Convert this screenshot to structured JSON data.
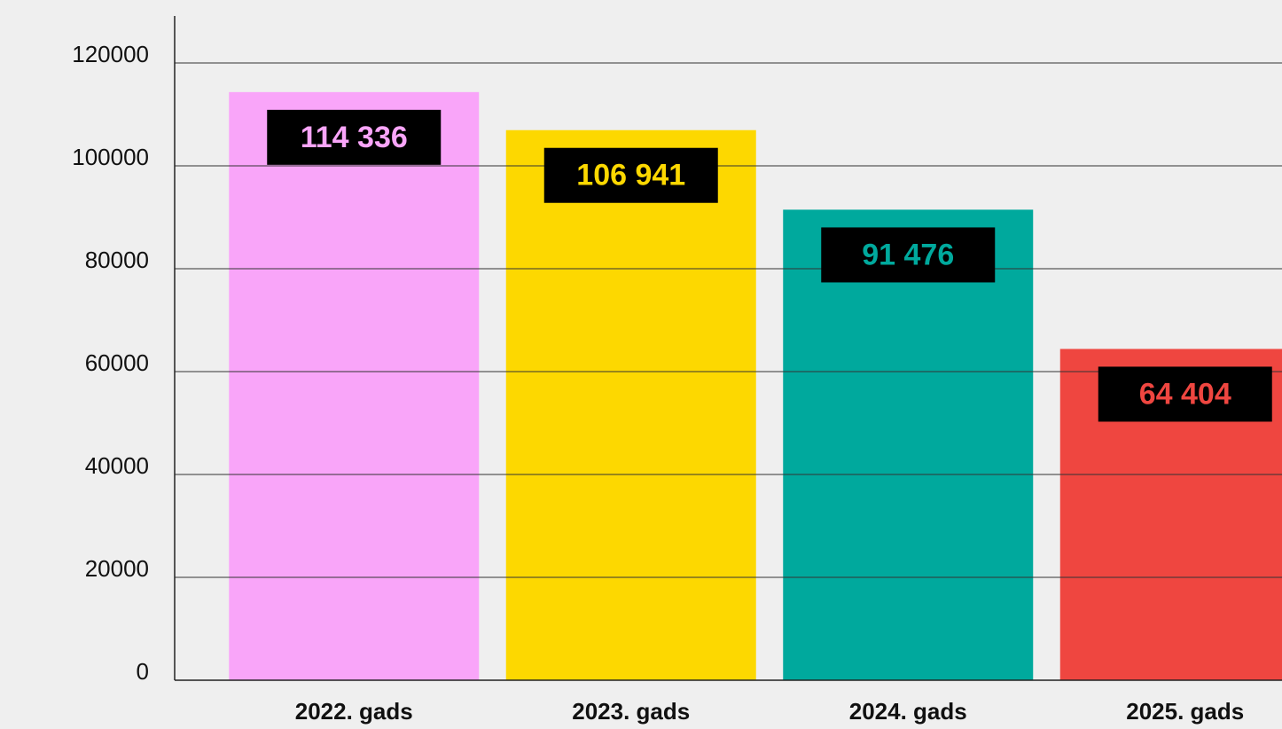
{
  "chart_data": {
    "type": "bar",
    "categories": [
      "2022. gads",
      "2023. gads",
      "2024. gads",
      "2025. gads"
    ],
    "values": [
      114336,
      106941,
      91476,
      64404
    ],
    "value_labels": [
      "114 336",
      "106 941",
      "91 476",
      "64 404"
    ],
    "colors": [
      "#f9a5f9",
      "#fdd800",
      "#00a99d",
      "#ef4640"
    ],
    "ylim": [
      0,
      120000
    ],
    "yticks": [
      0,
      20000,
      40000,
      60000,
      80000,
      100000,
      120000
    ],
    "grid": true
  }
}
